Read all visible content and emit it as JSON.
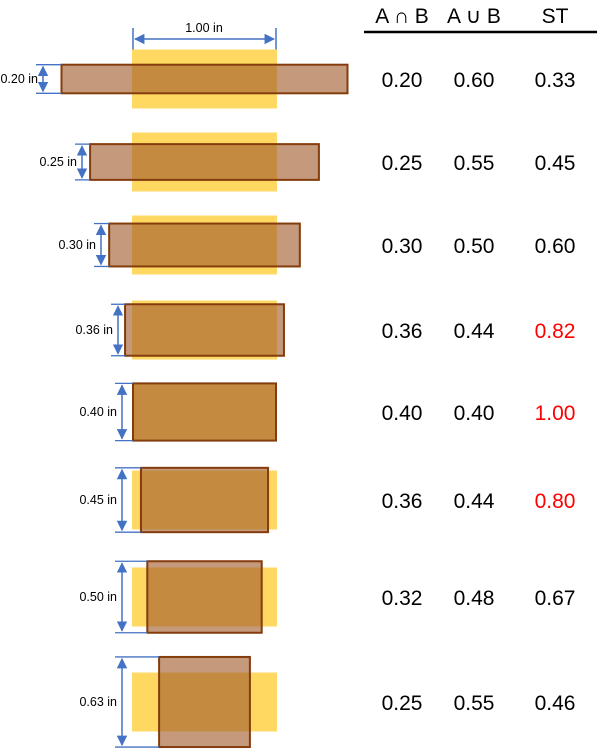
{
  "header": {
    "intersection_label": "A ∩ B",
    "union_label": "A ∪ B",
    "st_label": "ST"
  },
  "width_label": "1.00 in",
  "colors": {
    "box_a_fill": "#FFC000",
    "box_a_stroke": "#FFD966",
    "box_b_fill": "#A05A2C",
    "box_b_stroke": "#843C0C",
    "dimension_arrow": "#4472C4",
    "normal_value": "#000000",
    "highlight_value": "#FF0000"
  },
  "rows": [
    {
      "height_label": "0.20 in",
      "intersection": "0.20",
      "union": "0.60",
      "st": "0.33",
      "highlight": false
    },
    {
      "height_label": "0.25 in",
      "intersection": "0.25",
      "union": "0.55",
      "st": "0.45",
      "highlight": false
    },
    {
      "height_label": "0.30 in",
      "intersection": "0.30",
      "union": "0.50",
      "st": "0.60",
      "highlight": false
    },
    {
      "height_label": "0.36 in",
      "intersection": "0.36",
      "union": "0.44",
      "st": "0.82",
      "highlight": true
    },
    {
      "height_label": "0.40 in",
      "intersection": "0.40",
      "union": "0.40",
      "st": "1.00",
      "highlight": true
    },
    {
      "height_label": "0.45 in",
      "intersection": "0.36",
      "union": "0.44",
      "st": "0.80",
      "highlight": true
    },
    {
      "height_label": "0.50 in",
      "intersection": "0.32",
      "union": "0.48",
      "st": "0.67",
      "highlight": false
    },
    {
      "height_label": "0.63 in",
      "intersection": "0.25",
      "union": "0.55",
      "st": "0.46",
      "highlight": false
    }
  ]
}
